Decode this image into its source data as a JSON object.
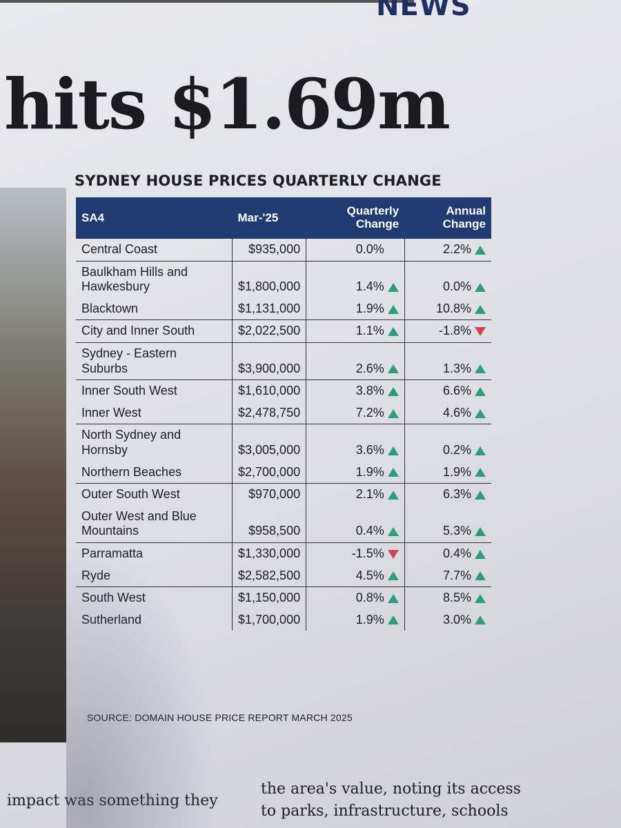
{
  "masthead": "NEWS",
  "headline": "hits $1.69m",
  "table": {
    "title": "SYDNEY HOUSE PRICES QUARTERLY CHANGE",
    "headers": [
      "SA4",
      "Mar-'25",
      "Quarterly Change",
      "Annual Change"
    ],
    "rows": [
      [
        "Central Coast",
        "$935,000",
        "0.0%",
        "2.2%"
      ],
      [
        "Baulkham Hills and Hawkesbury",
        "$1,800,000",
        "1.4%",
        "0.0%"
      ],
      [
        "Blacktown",
        "$1,131,000",
        "1.9%",
        "10.8%"
      ],
      [
        "City and Inner South",
        "$2,022,500",
        "1.1%",
        "-1.8%"
      ],
      [
        "Sydney - Eastern Suburbs",
        "$3,900,000",
        "2.6%",
        "1.3%"
      ],
      [
        "Inner South West",
        "$1,610,000",
        "3.8%",
        "6.6%"
      ],
      [
        "Inner West",
        "$2,478,750",
        "7.2%",
        "4.6%"
      ],
      [
        "North Sydney and Hornsby",
        "$3,005,000",
        "3.6%",
        "0.2%"
      ],
      [
        "Northern Beaches",
        "$2,700,000",
        "1.9%",
        "1.9%"
      ],
      [
        "Outer South West",
        "$970,000",
        "2.1%",
        "6.3%"
      ],
      [
        "Outer West and Blue Mountains",
        "$958,500",
        "0.4%",
        "5.3%"
      ],
      [
        "Parramatta",
        "$1,330,000",
        "-1.5%",
        "0.4%"
      ],
      [
        "Ryde",
        "$2,582,500",
        "4.5%",
        "7.7%"
      ],
      [
        "South West",
        "$1,150,000",
        "0.8%",
        "8.5%"
      ],
      [
        "Sutherland",
        "$1,700,000",
        "1.9%",
        "3.0%"
      ]
    ],
    "source": "SOURCE: DOMAIN HOUSE PRICE REPORT MARCH 2025"
  },
  "body": {
    "column1": [
      "impact was something they"
    ],
    "column2": [
      "the area's value, noting its access",
      "to parks, infrastructure, schools"
    ]
  }
}
